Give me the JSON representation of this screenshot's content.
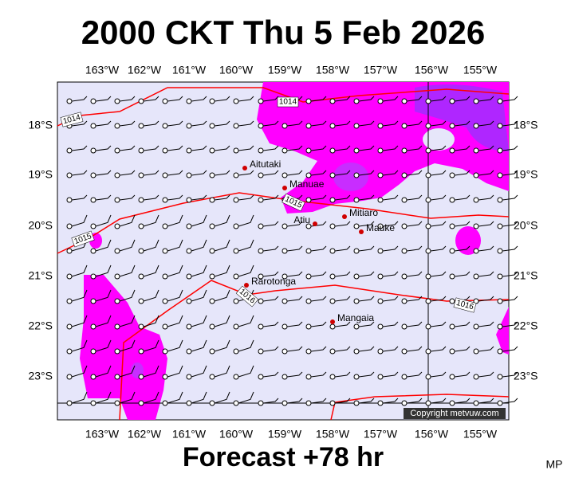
{
  "header": {
    "title": "2000 CKT Thu 5 Feb 2026"
  },
  "footer": {
    "forecast": "Forecast +78 hr",
    "initials": "MP"
  },
  "map": {
    "lon_labels": [
      "163°W",
      "162°W",
      "161°W",
      "160°W",
      "159°W",
      "158°W",
      "157°W",
      "156°W",
      "155°W"
    ],
    "lat_labels": [
      "18°S",
      "19°S",
      "20°S",
      "21°S",
      "22°S",
      "23°S"
    ],
    "places": [
      "Aitutaki",
      "Manuae",
      "Atiu",
      "Mitiaro",
      "Mauke",
      "Rarotonga",
      "Mangaia"
    ],
    "isobar_labels": [
      "1014",
      "1014",
      "1015",
      "1015",
      "1016",
      "1016"
    ],
    "copyright": "Copyright metvuw.com"
  }
}
